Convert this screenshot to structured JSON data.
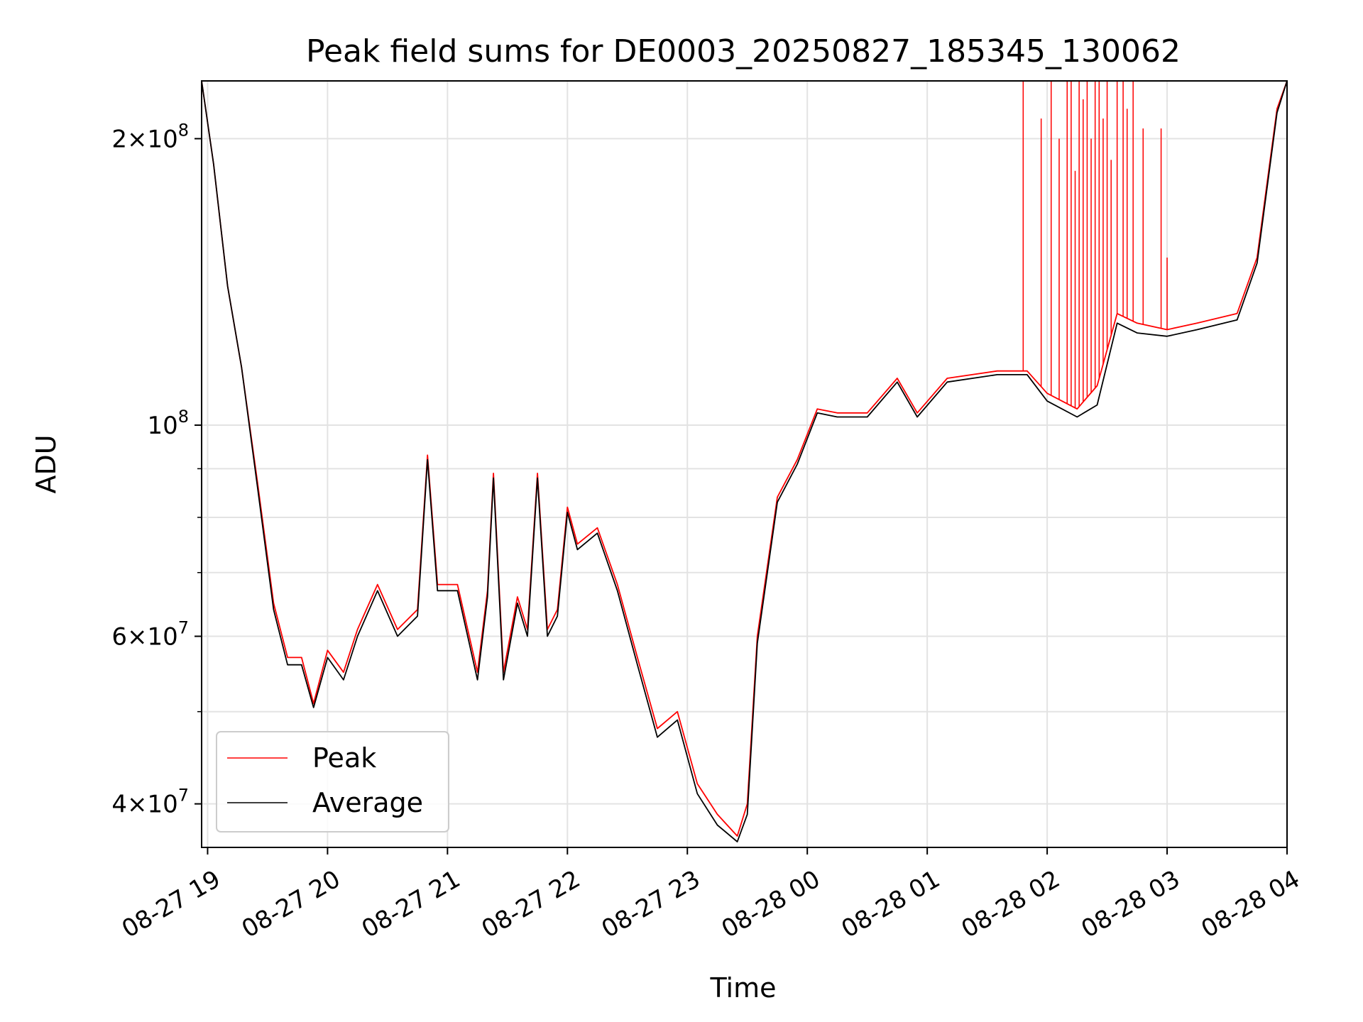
{
  "chart_data": {
    "type": "line",
    "title": "Peak field sums for DE0003_20250827_185345_130062",
    "xlabel": "Time",
    "ylabel": "ADU",
    "yscale": "log",
    "ylim": [
      36000000,
      230000000
    ],
    "xlim": [
      "2025-08-27 18:57",
      "2025-08-28 04:00"
    ],
    "grid": true,
    "legend_position": "lower-left",
    "x_ticks": [
      {
        "t": "2025-08-27 19:00",
        "label": "08-27 19"
      },
      {
        "t": "2025-08-27 20:00",
        "label": "08-27 20"
      },
      {
        "t": "2025-08-27 21:00",
        "label": "08-27 21"
      },
      {
        "t": "2025-08-27 22:00",
        "label": "08-27 22"
      },
      {
        "t": "2025-08-27 23:00",
        "label": "08-27 23"
      },
      {
        "t": "2025-08-28 00:00",
        "label": "08-28 00"
      },
      {
        "t": "2025-08-28 01:00",
        "label": "08-28 01"
      },
      {
        "t": "2025-08-28 02:00",
        "label": "08-28 02"
      },
      {
        "t": "2025-08-28 03:00",
        "label": "08-28 03"
      },
      {
        "t": "2025-08-28 04:00",
        "label": "08-28 04"
      }
    ],
    "y_ticks": [
      {
        "value": 40000000,
        "mantissa": "4",
        "exponent": "7"
      },
      {
        "value": 60000000,
        "mantissa": "6",
        "exponent": "7"
      },
      {
        "value": 100000000,
        "mantissa": "",
        "exponent": "8"
      },
      {
        "value": 200000000,
        "mantissa": "2",
        "exponent": "8"
      }
    ],
    "y_minor_ticks": [
      50000000,
      70000000,
      80000000,
      90000000
    ],
    "series": [
      {
        "name": "Peak",
        "color": "#ff0000",
        "points": [
          [
            "2025-08-27 18:57",
            230000000
          ],
          [
            "2025-08-27 19:03",
            188000000
          ],
          [
            "2025-08-27 19:10",
            140000000
          ],
          [
            "2025-08-27 19:17",
            115000000
          ],
          [
            "2025-08-27 19:25",
            87000000
          ],
          [
            "2025-08-27 19:33",
            65000000
          ],
          [
            "2025-08-27 19:40",
            57000000
          ],
          [
            "2025-08-27 19:47",
            57000000
          ],
          [
            "2025-08-27 19:53",
            51000000
          ],
          [
            "2025-08-27 20:00",
            58000000
          ],
          [
            "2025-08-27 20:08",
            55000000
          ],
          [
            "2025-08-27 20:15",
            61000000
          ],
          [
            "2025-08-27 20:25",
            68000000
          ],
          [
            "2025-08-27 20:35",
            61000000
          ],
          [
            "2025-08-27 20:45",
            64000000
          ],
          [
            "2025-08-27 20:50",
            93000000
          ],
          [
            "2025-08-27 20:55",
            68000000
          ],
          [
            "2025-08-27 21:05",
            68000000
          ],
          [
            "2025-08-27 21:15",
            55000000
          ],
          [
            "2025-08-27 21:20",
            67000000
          ],
          [
            "2025-08-27 21:23",
            89000000
          ],
          [
            "2025-08-27 21:28",
            55000000
          ],
          [
            "2025-08-27 21:35",
            66000000
          ],
          [
            "2025-08-27 21:40",
            61000000
          ],
          [
            "2025-08-27 21:45",
            89000000
          ],
          [
            "2025-08-27 21:50",
            61000000
          ],
          [
            "2025-08-27 21:55",
            64000000
          ],
          [
            "2025-08-27 22:00",
            82000000
          ],
          [
            "2025-08-27 22:05",
            75000000
          ],
          [
            "2025-08-27 22:15",
            78000000
          ],
          [
            "2025-08-27 22:25",
            68000000
          ],
          [
            "2025-08-27 22:35",
            57000000
          ],
          [
            "2025-08-27 22:45",
            48000000
          ],
          [
            "2025-08-27 22:55",
            50000000
          ],
          [
            "2025-08-27 23:05",
            42000000
          ],
          [
            "2025-08-27 23:15",
            39000000
          ],
          [
            "2025-08-27 23:25",
            37000000
          ],
          [
            "2025-08-27 23:30",
            40000000
          ],
          [
            "2025-08-27 23:35",
            60000000
          ],
          [
            "2025-08-27 23:45",
            84000000
          ],
          [
            "2025-08-27 23:55",
            92000000
          ],
          [
            "2025-08-28 00:05",
            104000000
          ],
          [
            "2025-08-28 00:15",
            103000000
          ],
          [
            "2025-08-28 00:30",
            103000000
          ],
          [
            "2025-08-28 00:45",
            112000000
          ],
          [
            "2025-08-28 00:55",
            103000000
          ],
          [
            "2025-08-28 01:10",
            112000000
          ],
          [
            "2025-08-28 01:35",
            114000000
          ],
          [
            "2025-08-28 01:50",
            114000000
          ],
          [
            "2025-08-28 02:00",
            108000000
          ],
          [
            "2025-08-28 02:15",
            104000000
          ],
          [
            "2025-08-28 02:25",
            110000000
          ],
          [
            "2025-08-28 02:35",
            131000000
          ],
          [
            "2025-08-28 02:45",
            128000000
          ],
          [
            "2025-08-28 03:00",
            126000000
          ],
          [
            "2025-08-28 03:15",
            128000000
          ],
          [
            "2025-08-28 03:35",
            131000000
          ],
          [
            "2025-08-28 03:45",
            150000000
          ],
          [
            "2025-08-28 03:55",
            215000000
          ],
          [
            "2025-08-28 04:00",
            230000000
          ]
        ]
      },
      {
        "name": "Average",
        "color": "#000000",
        "points": [
          [
            "2025-08-27 18:57",
            230000000
          ],
          [
            "2025-08-27 19:03",
            188000000
          ],
          [
            "2025-08-27 19:10",
            140000000
          ],
          [
            "2025-08-27 19:17",
            115000000
          ],
          [
            "2025-08-27 19:25",
            86000000
          ],
          [
            "2025-08-27 19:33",
            64000000
          ],
          [
            "2025-08-27 19:40",
            56000000
          ],
          [
            "2025-08-27 19:47",
            56000000
          ],
          [
            "2025-08-27 19:53",
            50500000
          ],
          [
            "2025-08-27 20:00",
            57000000
          ],
          [
            "2025-08-27 20:08",
            54000000
          ],
          [
            "2025-08-27 20:15",
            60000000
          ],
          [
            "2025-08-27 20:25",
            67000000
          ],
          [
            "2025-08-27 20:35",
            60000000
          ],
          [
            "2025-08-27 20:45",
            63000000
          ],
          [
            "2025-08-27 20:50",
            92000000
          ],
          [
            "2025-08-27 20:55",
            67000000
          ],
          [
            "2025-08-27 21:05",
            67000000
          ],
          [
            "2025-08-27 21:15",
            54000000
          ],
          [
            "2025-08-27 21:20",
            66000000
          ],
          [
            "2025-08-27 21:23",
            88000000
          ],
          [
            "2025-08-27 21:28",
            54000000
          ],
          [
            "2025-08-27 21:35",
            65000000
          ],
          [
            "2025-08-27 21:40",
            60000000
          ],
          [
            "2025-08-27 21:45",
            88000000
          ],
          [
            "2025-08-27 21:50",
            60000000
          ],
          [
            "2025-08-27 21:55",
            63000000
          ],
          [
            "2025-08-27 22:00",
            81000000
          ],
          [
            "2025-08-27 22:05",
            74000000
          ],
          [
            "2025-08-27 22:15",
            77000000
          ],
          [
            "2025-08-27 22:25",
            67000000
          ],
          [
            "2025-08-27 22:35",
            56000000
          ],
          [
            "2025-08-27 22:45",
            47000000
          ],
          [
            "2025-08-27 22:55",
            49000000
          ],
          [
            "2025-08-27 23:05",
            41000000
          ],
          [
            "2025-08-27 23:15",
            38000000
          ],
          [
            "2025-08-27 23:25",
            36500000
          ],
          [
            "2025-08-27 23:30",
            39000000
          ],
          [
            "2025-08-27 23:35",
            59000000
          ],
          [
            "2025-08-27 23:45",
            83000000
          ],
          [
            "2025-08-27 23:55",
            91000000
          ],
          [
            "2025-08-28 00:05",
            103000000
          ],
          [
            "2025-08-28 00:15",
            102000000
          ],
          [
            "2025-08-28 00:30",
            102000000
          ],
          [
            "2025-08-28 00:45",
            111000000
          ],
          [
            "2025-08-28 00:55",
            102000000
          ],
          [
            "2025-08-28 01:10",
            111000000
          ],
          [
            "2025-08-28 01:35",
            113000000
          ],
          [
            "2025-08-28 01:50",
            113000000
          ],
          [
            "2025-08-28 02:00",
            106000000
          ],
          [
            "2025-08-28 02:15",
            102000000
          ],
          [
            "2025-08-28 02:25",
            105000000
          ],
          [
            "2025-08-28 02:35",
            128000000
          ],
          [
            "2025-08-28 02:45",
            125000000
          ],
          [
            "2025-08-28 03:00",
            124000000
          ],
          [
            "2025-08-28 03:15",
            126000000
          ],
          [
            "2025-08-28 03:35",
            129000000
          ],
          [
            "2025-08-28 03:45",
            148000000
          ],
          [
            "2025-08-28 03:55",
            213000000
          ],
          [
            "2025-08-28 04:00",
            230000000
          ]
        ]
      }
    ],
    "peak_spikes": [
      [
        "2025-08-28 01:48",
        230000000
      ],
      [
        "2025-08-28 01:57",
        210000000
      ],
      [
        "2025-08-28 02:02",
        230000000
      ],
      [
        "2025-08-28 02:06",
        200000000
      ],
      [
        "2025-08-28 02:10",
        230000000
      ],
      [
        "2025-08-28 02:12",
        230000000
      ],
      [
        "2025-08-28 02:14",
        185000000
      ],
      [
        "2025-08-28 02:16",
        230000000
      ],
      [
        "2025-08-28 02:18",
        220000000
      ],
      [
        "2025-08-28 02:20",
        230000000
      ],
      [
        "2025-08-28 02:22",
        200000000
      ],
      [
        "2025-08-28 02:24",
        230000000
      ],
      [
        "2025-08-28 02:26",
        230000000
      ],
      [
        "2025-08-28 02:28",
        210000000
      ],
      [
        "2025-08-28 02:30",
        230000000
      ],
      [
        "2025-08-28 02:32",
        190000000
      ],
      [
        "2025-08-28 02:35",
        230000000
      ],
      [
        "2025-08-28 02:38",
        230000000
      ],
      [
        "2025-08-28 02:40",
        215000000
      ],
      [
        "2025-08-28 02:43",
        230000000
      ],
      [
        "2025-08-28 02:48",
        205000000
      ],
      [
        "2025-08-28 02:57",
        205000000
      ],
      [
        "2025-08-28 03:00",
        150000000
      ]
    ]
  }
}
